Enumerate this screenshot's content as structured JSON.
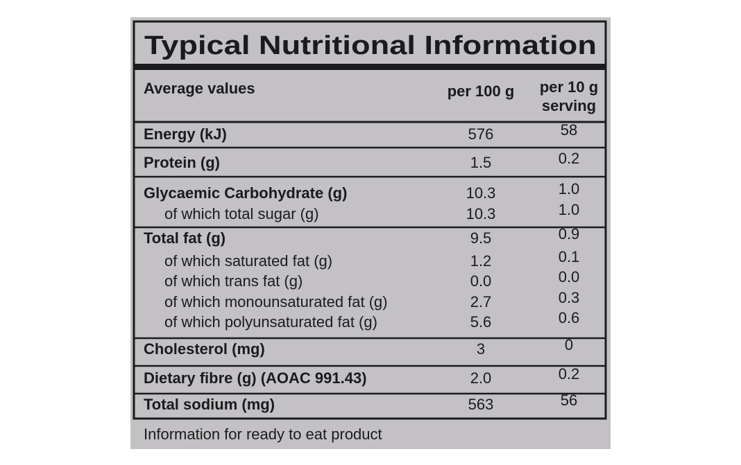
{
  "title": "Typical Nutritional Information",
  "header": {
    "label": "Average values",
    "per_100g": "per 100 g",
    "per_serving": [
      "per 10 g",
      "serving"
    ]
  },
  "sections": [
    {
      "main": {
        "label": "Energy (kJ)",
        "per_100g": "576",
        "per_serving": "58"
      },
      "sub": []
    },
    {
      "main": {
        "label": "Protein (g)",
        "per_100g": "1.5",
        "per_serving": "0.2"
      },
      "sub": []
    },
    {
      "main": {
        "label": "Glycaemic Carbohydrate (g)",
        "per_100g": "10.3",
        "per_serving": "1.0"
      },
      "sub": [
        {
          "label": "of which total sugar (g)",
          "per_100g": "10.3",
          "per_serving": "1.0"
        }
      ]
    },
    {
      "main": {
        "label": "Total fat (g)",
        "per_100g": "9.5",
        "per_serving": "0.9"
      },
      "sub": [
        {
          "label": "of which saturated fat (g)",
          "per_100g": "1.2",
          "per_serving": "0.1"
        },
        {
          "label": "of which trans fat (g)",
          "per_100g": "0.0",
          "per_serving": "0.0"
        },
        {
          "label": "of which monounsaturated fat (g)",
          "per_100g": "2.7",
          "per_serving": "0.3"
        },
        {
          "label": "of which polyunsaturated fat (g)",
          "per_100g": "5.6",
          "per_serving": "0.6"
        }
      ]
    },
    {
      "main": {
        "label": "Cholesterol (mg)",
        "per_100g": "3",
        "per_serving": "0"
      },
      "sub": []
    },
    {
      "main": {
        "label": "Dietary fibre (g) (AOAC 991.43)",
        "per_100g": "2.0",
        "per_serving": "0.2"
      },
      "sub": []
    },
    {
      "main": {
        "label": "Total sodium (mg)",
        "per_100g": "563",
        "per_serving": "56"
      },
      "sub": []
    }
  ],
  "footer": "Information for ready to eat product"
}
